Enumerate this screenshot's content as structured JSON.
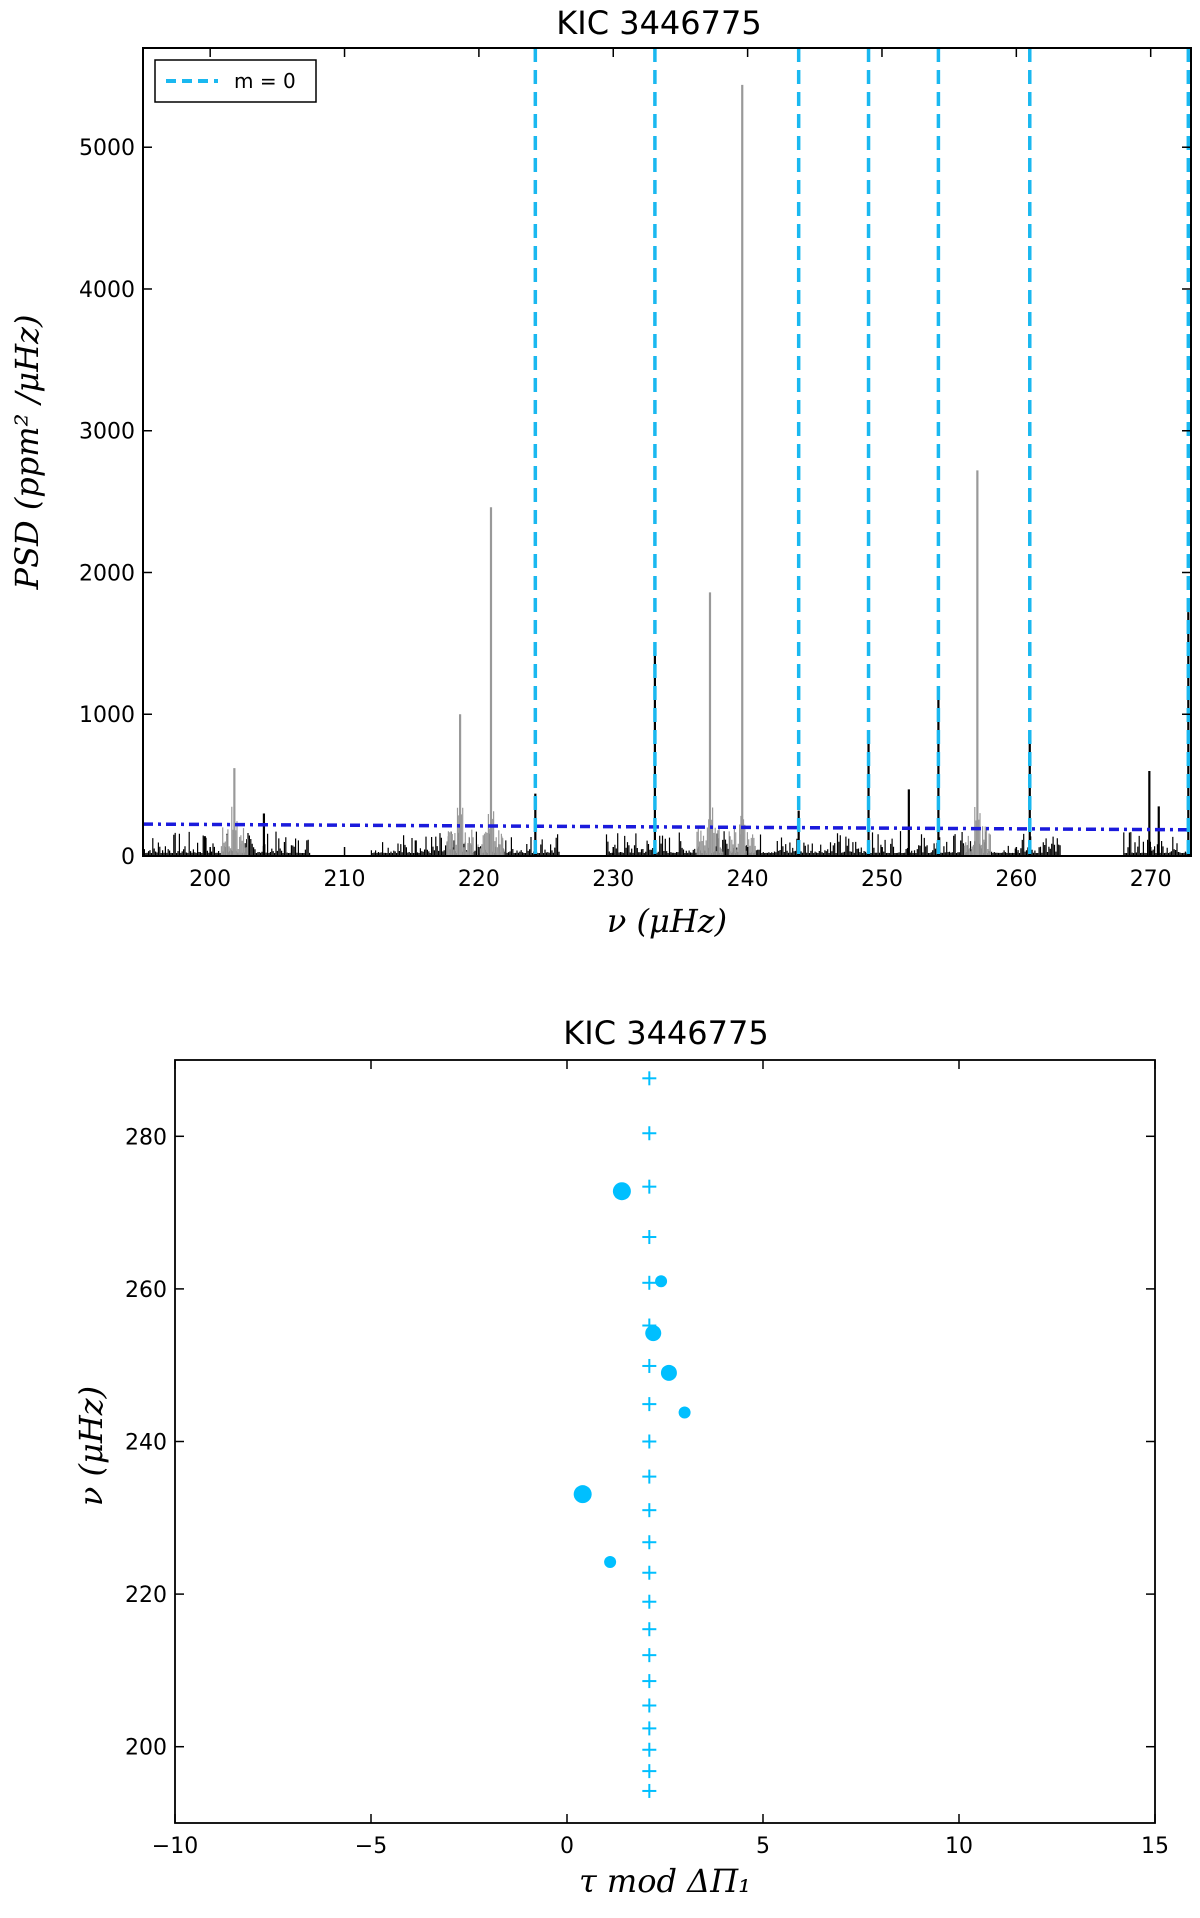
{
  "chart_data": [
    {
      "type": "line",
      "title": "KIC 3446775",
      "xlabel": "ν (μHz)",
      "ylabel": "PSD (ppm² /μHz)",
      "xlim": [
        195,
        273
      ],
      "ylim": [
        0,
        5700
      ],
      "xticks": [
        200,
        210,
        220,
        230,
        240,
        250,
        260,
        270
      ],
      "yticks": [
        0,
        1000,
        2000,
        3000,
        4000,
        5000
      ],
      "grid": false,
      "legend": {
        "position": "top-left",
        "entries": [
          "m = 0"
        ]
      },
      "colors": {
        "m0_line": "#1ab8f0",
        "threshold": "#1a1adc",
        "spectrum": "#000000",
        "fitted": "#999999"
      },
      "m0_frequencies": [
        224.2,
        233.1,
        243.8,
        249.0,
        254.2,
        261.0,
        272.8
      ],
      "threshold_line": {
        "x": [
          195,
          273
        ],
        "y": [
          225,
          185
        ]
      },
      "noise_segments": [
        [
          195,
          207.5
        ],
        [
          212,
          226
        ],
        [
          229.5,
          263.3
        ],
        [
          268,
          273
        ]
      ],
      "spectrum_peaks": [
        {
          "x": 199.6,
          "y": 140,
          "series": "spectrum"
        },
        {
          "x": 201.8,
          "y": 620,
          "series": "fitted"
        },
        {
          "x": 204.0,
          "y": 300,
          "series": "spectrum"
        },
        {
          "x": 215.3,
          "y": 110,
          "series": "spectrum"
        },
        {
          "x": 218.6,
          "y": 1000,
          "series": "fitted"
        },
        {
          "x": 220.9,
          "y": 2460,
          "series": "fitted"
        },
        {
          "x": 224.2,
          "y": 440,
          "series": "spectrum"
        },
        {
          "x": 233.1,
          "y": 1440,
          "series": "spectrum"
        },
        {
          "x": 237.2,
          "y": 1860,
          "series": "fitted"
        },
        {
          "x": 239.6,
          "y": 5440,
          "series": "fitted"
        },
        {
          "x": 243.8,
          "y": 320,
          "series": "spectrum"
        },
        {
          "x": 249.0,
          "y": 860,
          "series": "spectrum"
        },
        {
          "x": 252.0,
          "y": 470,
          "series": "spectrum"
        },
        {
          "x": 254.2,
          "y": 1120,
          "series": "spectrum"
        },
        {
          "x": 257.1,
          "y": 2720,
          "series": "fitted"
        },
        {
          "x": 261.0,
          "y": 810,
          "series": "spectrum"
        },
        {
          "x": 269.9,
          "y": 600,
          "series": "spectrum"
        },
        {
          "x": 270.6,
          "y": 350,
          "series": "spectrum"
        },
        {
          "x": 272.8,
          "y": 1720,
          "series": "spectrum"
        }
      ]
    },
    {
      "type": "scatter",
      "title": "KIC 3446775",
      "xlabel": "τ mod ΔΠ₁",
      "ylabel": "ν (μHz)",
      "xlim": [
        -10,
        15
      ],
      "ylim": [
        190,
        290
      ],
      "xticks": [
        -10,
        -5,
        0,
        5,
        10,
        15
      ],
      "yticks": [
        200,
        220,
        240,
        260,
        280
      ],
      "grid": false,
      "colors": {
        "points": "#00bfff"
      },
      "observed_points": [
        {
          "x": 1.4,
          "y": 272.8,
          "size": "large"
        },
        {
          "x": 2.4,
          "y": 261.0,
          "size": "small"
        },
        {
          "x": 2.2,
          "y": 254.2,
          "size": "medium"
        },
        {
          "x": 2.6,
          "y": 249.0,
          "size": "medium"
        },
        {
          "x": 3.0,
          "y": 243.8,
          "size": "small"
        },
        {
          "x": 0.4,
          "y": 233.1,
          "size": "large"
        },
        {
          "x": 1.1,
          "y": 224.2,
          "size": "small"
        }
      ],
      "model_points": {
        "x": 2.1,
        "y": [
          287.6,
          280.4,
          273.4,
          266.8,
          260.8,
          255.2,
          249.9,
          244.9,
          240.0,
          235.4,
          231.0,
          226.8,
          222.8,
          219.0,
          215.4,
          212.0,
          208.6,
          205.4,
          202.4,
          199.6,
          196.8,
          194.2
        ]
      }
    }
  ]
}
